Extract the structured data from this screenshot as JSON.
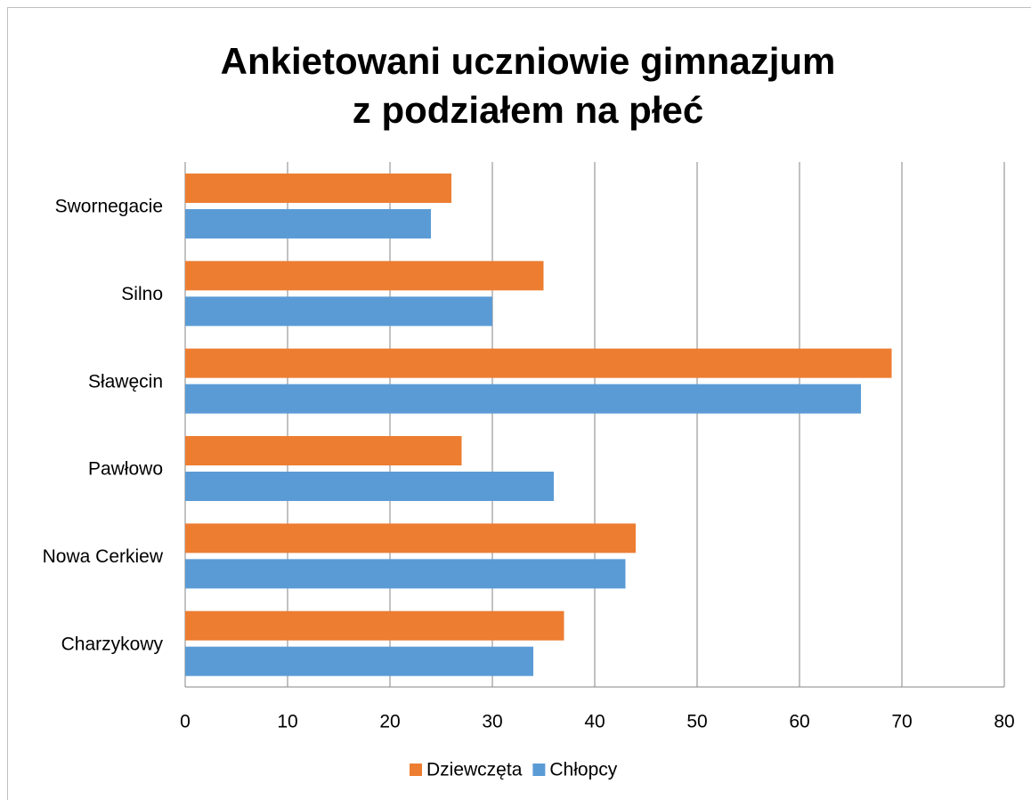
{
  "chart_data": {
    "type": "hbar",
    "title": [
      "Ankietowani uczniowie gimnazjum",
      "z podziałem na płeć"
    ],
    "categories": [
      "Swornegacie",
      "Silno",
      "Sławęcin",
      "Pawłowo",
      "Nowa Cerkiew",
      "Charzykowy"
    ],
    "series": [
      {
        "name": "Dziewczęta",
        "color": "#ed7d31",
        "values": [
          26,
          35,
          69,
          27,
          44,
          37
        ]
      },
      {
        "name": "Chłopcy",
        "color": "#5b9bd5",
        "values": [
          24,
          30,
          66,
          36,
          43,
          34
        ]
      }
    ],
    "xlim": [
      0,
      80
    ],
    "xticks": [
      0,
      10,
      20,
      30,
      40,
      50,
      60,
      70,
      80
    ],
    "grid": true,
    "legend": "bottom"
  }
}
